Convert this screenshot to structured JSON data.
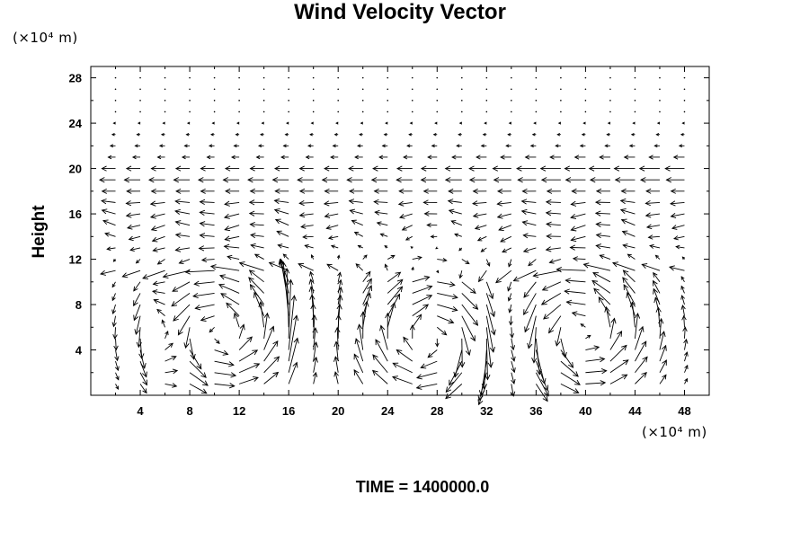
{
  "chart_data": {
    "type": "vector-field",
    "title": "Wind Velocity Vector",
    "ylabel": "Height",
    "xlabel": "",
    "y_unit_label": "(×10⁴ m)",
    "x_unit_label": "(×10⁴ m)",
    "footer": "TIME = 1400000.0",
    "xlim": [
      0,
      50
    ],
    "ylim": [
      0,
      29
    ],
    "x_ticks": [
      "4",
      "8",
      "12",
      "16",
      "20",
      "24",
      "28",
      "32",
      "36",
      "40",
      "44",
      "48"
    ],
    "y_ticks": [
      "4",
      "8",
      "12",
      "16",
      "20",
      "24",
      "28"
    ],
    "grid": false,
    "grid_spacing": {
      "dx": 2,
      "dy": 1
    },
    "features": {
      "jet_level": 19.5,
      "jet_level_2": 20.5,
      "jet_max_speed_x": 42,
      "convective_updrafts_x": [
        6,
        16,
        34
      ],
      "vortex_centers": [
        [
          10.5,
          5.5
        ],
        [
          27.5,
          5.0
        ],
        [
          39.5,
          5.5
        ]
      ],
      "boundary_layer_top": 11
    }
  }
}
